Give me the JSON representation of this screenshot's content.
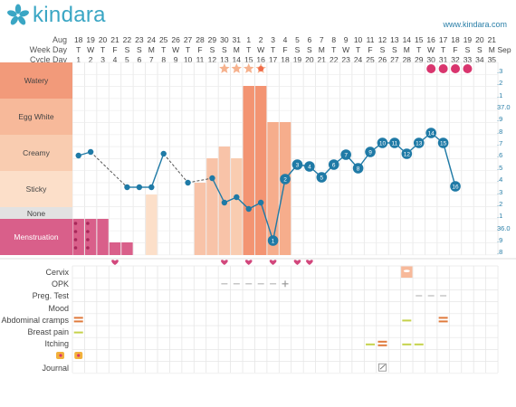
{
  "brand": {
    "name": "kindara",
    "url": "www.kindara.com"
  },
  "header": {
    "labels": [
      "Aug",
      "Week Day",
      "Cycle Day"
    ],
    "dates": [
      "18",
      "19",
      "20",
      "21",
      "22",
      "23",
      "24",
      "25",
      "26",
      "27",
      "28",
      "29",
      "30",
      "31",
      "1",
      "2",
      "3",
      "4",
      "5",
      "6",
      "7",
      "8",
      "9",
      "10",
      "11",
      "12",
      "13",
      "14",
      "15",
      "16",
      "17",
      "18",
      "19",
      "20",
      "21"
    ],
    "weekdays": [
      "T",
      "W",
      "T",
      "F",
      "S",
      "S",
      "M",
      "T",
      "W",
      "T",
      "F",
      "S",
      "S",
      "M",
      "T",
      "W",
      "T",
      "F",
      "S",
      "S",
      "M",
      "T",
      "W",
      "T",
      "F",
      "S",
      "S",
      "M",
      "T",
      "W",
      "T",
      "F",
      "S",
      "S",
      "M"
    ],
    "cycle_days": [
      "1",
      "2",
      "3",
      "4",
      "5",
      "6",
      "7",
      "8",
      "9",
      "10",
      "11",
      "12",
      "13",
      "14",
      "15",
      "16",
      "17",
      "18",
      "19",
      "20",
      "21",
      "22",
      "23",
      "24",
      "25",
      "26",
      "27",
      "28",
      "29",
      "30",
      "31",
      "32",
      "33",
      "34",
      "35"
    ],
    "sep_label": "Sep"
  },
  "zones": [
    "Watery",
    "Egg White",
    "Creamy",
    "Sticky",
    "None",
    "Menstruation"
  ],
  "temp_axis": [
    ".3",
    ".2",
    ".1",
    "37.0",
    ".9",
    ".8",
    ".7",
    ".6",
    ".5",
    ".4",
    ".3",
    ".2",
    ".1",
    "36.0",
    ".9",
    ".8"
  ],
  "row_labels": [
    "Cervix",
    "OPK",
    "Preg. Test",
    "Mood",
    "Abdominal cramps",
    "Breast pain",
    "Itching",
    "",
    "Journal"
  ],
  "temp_numbers": [
    "1",
    "2",
    "3",
    "4",
    "5",
    "6",
    "7",
    "8",
    "9",
    "10",
    "11",
    "12",
    "13",
    "14",
    "15",
    "16"
  ],
  "colors": {
    "accent": "#1f7aa6",
    "menstruation": "#d95f8a",
    "watery": "#f29a7a",
    "eggwhite": "#f7b99a",
    "creamy": "#f9ccb0",
    "sticky": "#fcdfc9",
    "none": "#e2e2e2",
    "heart": "#d2477c",
    "opk": "#b8b8b8"
  },
  "icons": {
    "star": "star-icon",
    "heart": "heart-icon",
    "dot": "fertile-dot-icon",
    "journal": "journal-icon",
    "custom": "custom-tag-icon"
  }
}
